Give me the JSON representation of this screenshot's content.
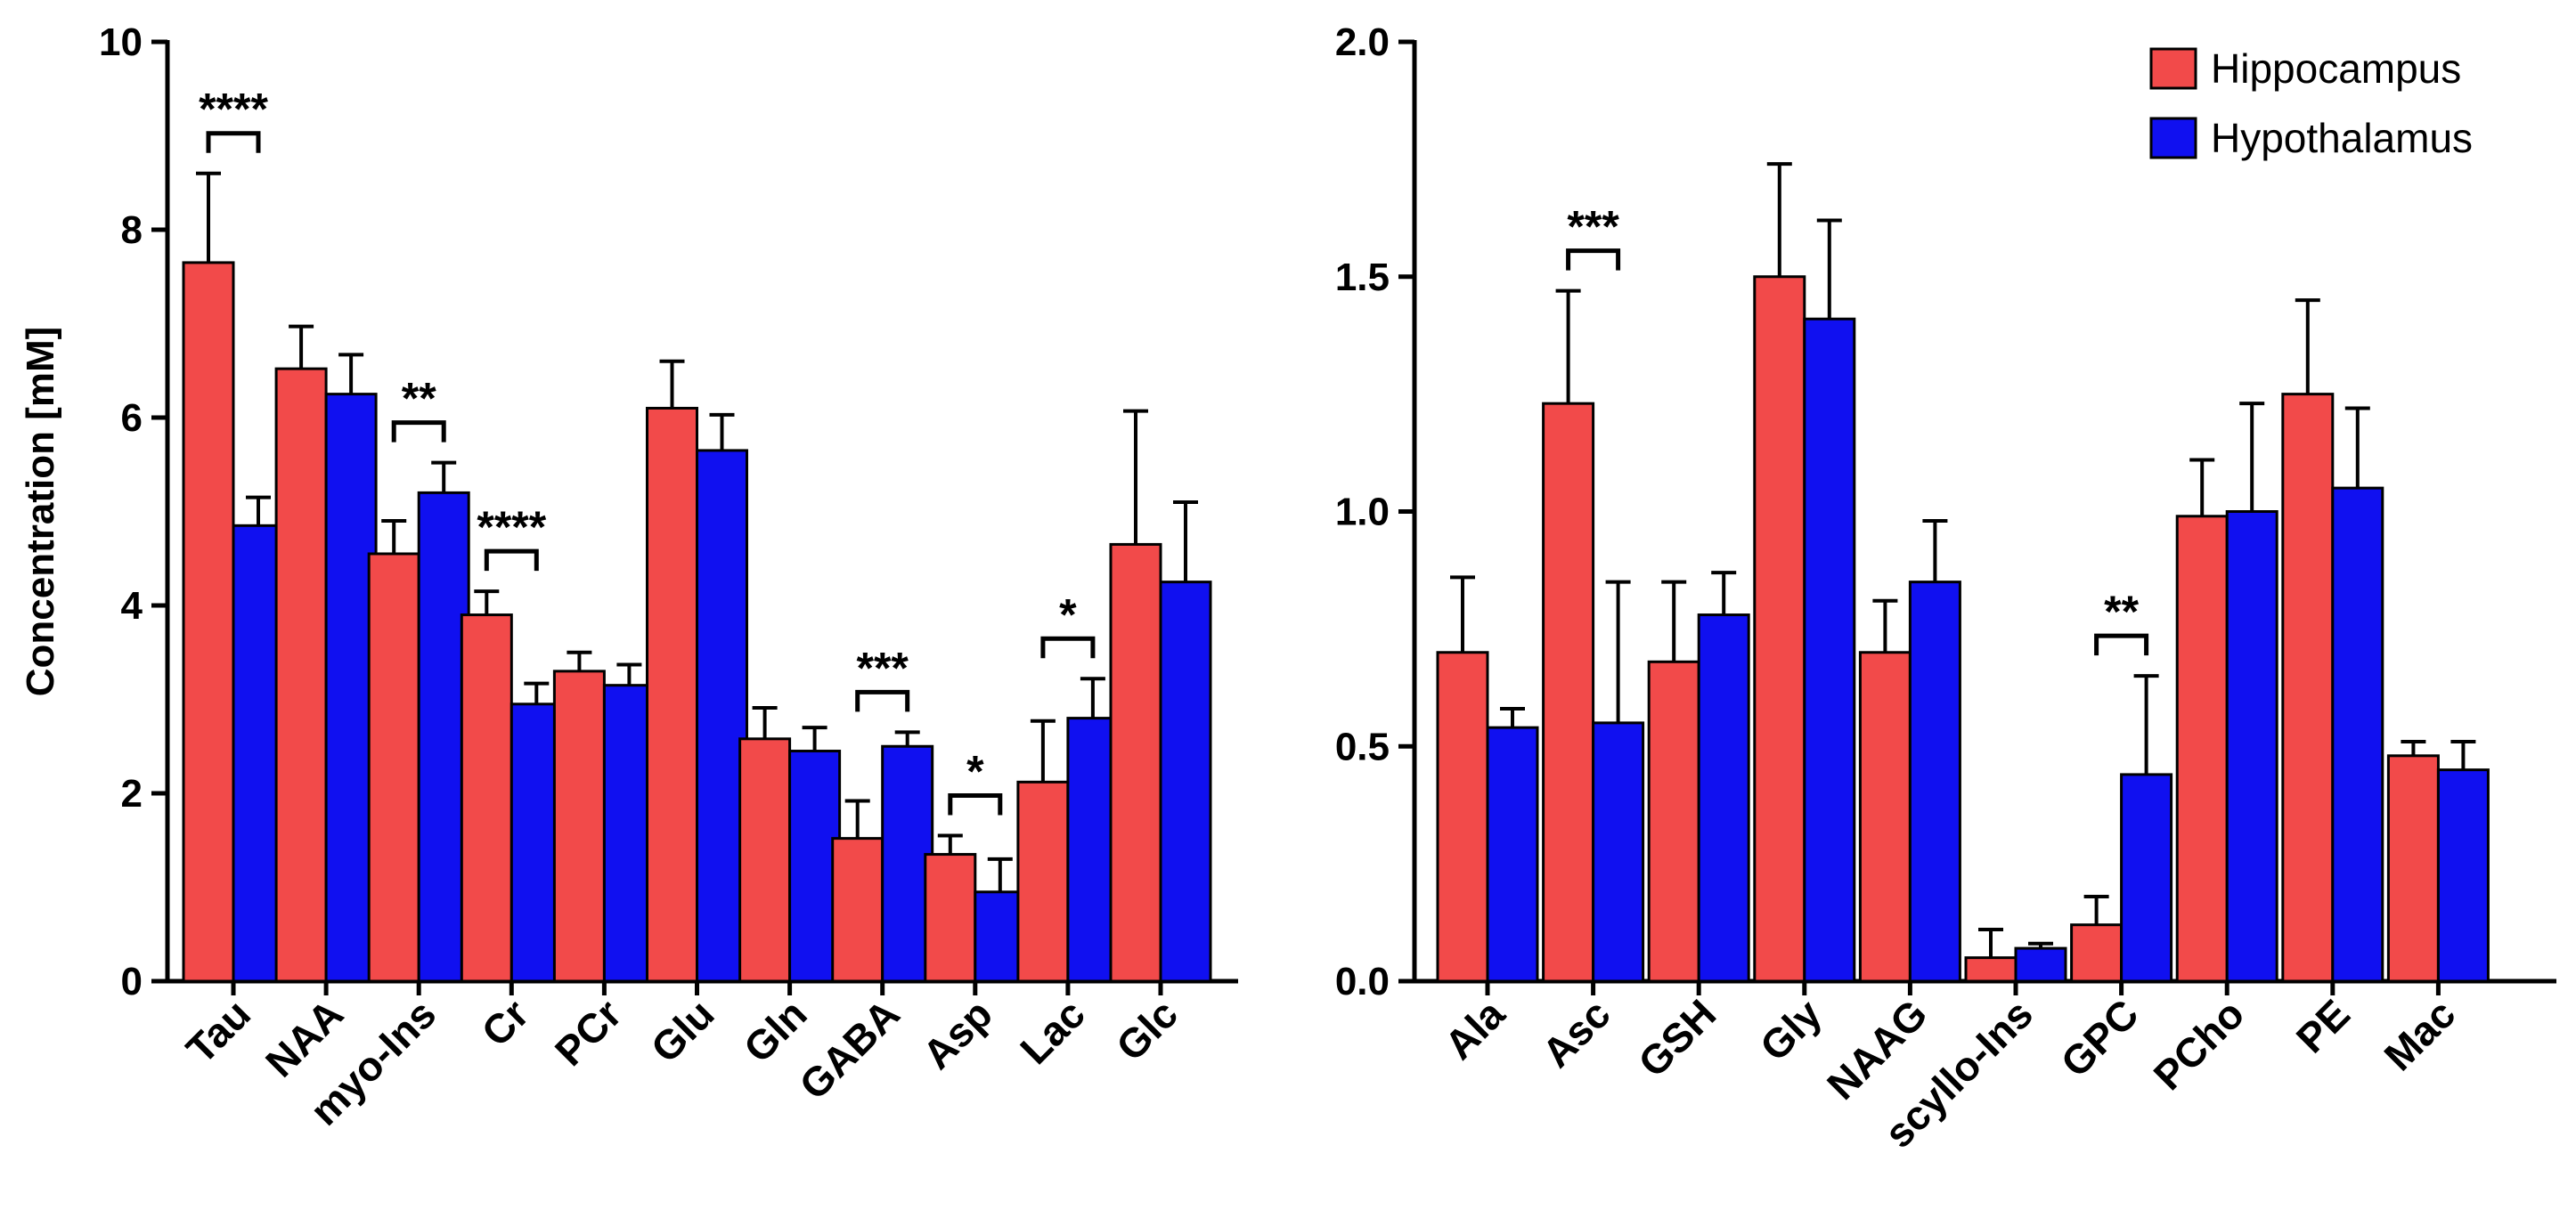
{
  "legend": {
    "hippocampus": "Hippocampus",
    "hypothalamus": "Hypothalamus"
  },
  "colors": {
    "hippocampus": "#f24a4a",
    "hypothalamus": "#1010f0"
  },
  "chart_data": [
    {
      "type": "bar",
      "title": "",
      "xlabel": "",
      "ylabel": "Concentration [mM]",
      "ylim": [
        0,
        10
      ],
      "yticks": [
        "0",
        "2",
        "4",
        "6",
        "8",
        "10"
      ],
      "categories": [
        "Tau",
        "NAA",
        "myo-Ins",
        "Cr",
        "PCr",
        "Glu",
        "Gln",
        "GABA",
        "Asp",
        "Lac",
        "Glc"
      ],
      "series": [
        {
          "name": "Hippocampus",
          "values": [
            7.65,
            6.52,
            4.55,
            3.9,
            3.3,
            6.1,
            2.58,
            1.52,
            1.35,
            2.12,
            4.65
          ],
          "errors": [
            0.95,
            0.45,
            0.35,
            0.25,
            0.2,
            0.5,
            0.33,
            0.4,
            0.2,
            0.65,
            1.42
          ]
        },
        {
          "name": "Hypothalamus",
          "values": [
            4.85,
            6.25,
            5.2,
            2.95,
            3.15,
            5.65,
            2.45,
            2.5,
            0.95,
            2.8,
            4.25
          ],
          "errors": [
            0.3,
            0.42,
            0.32,
            0.22,
            0.22,
            0.38,
            0.25,
            0.15,
            0.35,
            0.42,
            0.85
          ]
        }
      ],
      "significance": [
        {
          "category": "Tau",
          "label": "****"
        },
        {
          "category": "myo-Ins",
          "label": "**"
        },
        {
          "category": "Cr",
          "label": "****"
        },
        {
          "category": "GABA",
          "label": "***"
        },
        {
          "category": "Asp",
          "label": "*"
        },
        {
          "category": "Lac",
          "label": "*"
        }
      ]
    },
    {
      "type": "bar",
      "title": "",
      "xlabel": "",
      "ylabel": "",
      "ylim": [
        0,
        2.0
      ],
      "yticks": [
        "0.0",
        "0.5",
        "1.0",
        "1.5",
        "2.0"
      ],
      "categories": [
        "Ala",
        "Asc",
        "GSH",
        "Gly",
        "NAAG",
        "scyllo-Ins",
        "GPC",
        "PCho",
        "PE",
        "Mac"
      ],
      "series": [
        {
          "name": "Hippocampus",
          "values": [
            0.7,
            1.23,
            0.68,
            1.5,
            0.7,
            0.05,
            0.12,
            0.99,
            1.25,
            0.48
          ],
          "errors": [
            0.16,
            0.24,
            0.17,
            0.24,
            0.11,
            0.06,
            0.06,
            0.12,
            0.2,
            0.03
          ]
        },
        {
          "name": "Hypothalamus",
          "values": [
            0.54,
            0.55,
            0.78,
            1.41,
            0.85,
            0.07,
            0.44,
            1.0,
            1.05,
            0.45
          ],
          "errors": [
            0.04,
            0.3,
            0.09,
            0.21,
            0.13,
            0.01,
            0.21,
            0.23,
            0.17,
            0.06
          ]
        }
      ],
      "significance": [
        {
          "category": "Asc",
          "label": "***"
        },
        {
          "category": "GPC",
          "label": "**"
        }
      ]
    }
  ]
}
